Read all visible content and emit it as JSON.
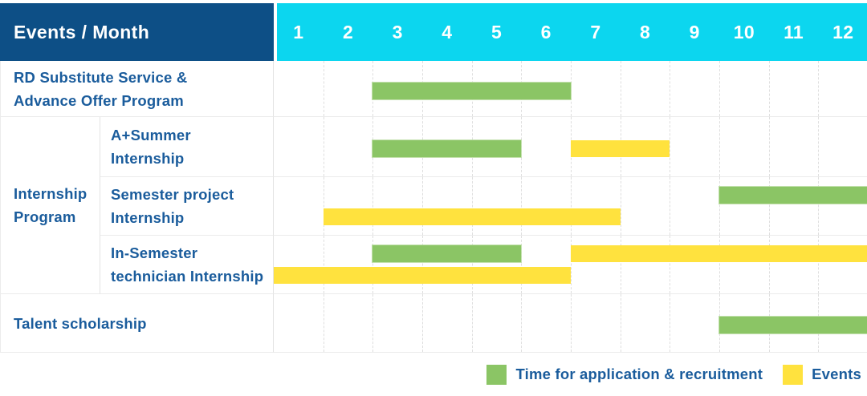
{
  "colors": {
    "navy": "#0d4f86",
    "cyan": "#0cd6ef",
    "green": "#8bc565",
    "yellow": "#ffe23e",
    "label_text": "#1a5c9c"
  },
  "header": {
    "label": "Events / Month",
    "months": [
      "1",
      "2",
      "3",
      "4",
      "5",
      "6",
      "7",
      "8",
      "9",
      "10",
      "11",
      "12"
    ]
  },
  "group": {
    "label_lines": [
      "Internship",
      "Program"
    ]
  },
  "rows": [
    {
      "name": "rd-substitute-service-advance-offer-program",
      "label_lines": [
        "RD Substitute Service &",
        "Advance Offer Program"
      ],
      "lines": [
        [
          {
            "color": "green",
            "start": 3,
            "end": 6
          }
        ]
      ]
    },
    {
      "name": "a-plus-summer-internship",
      "label_lines": [
        "A+Summer",
        "Internship"
      ],
      "lines": [
        [
          {
            "color": "green",
            "start": 3,
            "end": 5
          },
          {
            "color": "yellow",
            "start": 7,
            "end": 8
          }
        ]
      ]
    },
    {
      "name": "semester-project-internship",
      "label_lines": [
        "Semester project",
        "Internship"
      ],
      "lines": [
        [
          {
            "color": "green",
            "start": 10,
            "end": 12
          }
        ],
        [
          {
            "color": "yellow",
            "start": 2,
            "end": 7
          }
        ]
      ]
    },
    {
      "name": "in-semester-technician-internship",
      "label_lines": [
        "In-Semester",
        "technician Internship"
      ],
      "lines": [
        [
          {
            "color": "green",
            "start": 3,
            "end": 5
          },
          {
            "color": "yellow",
            "start": 7,
            "end": 12
          }
        ],
        [
          {
            "color": "yellow",
            "start": 1,
            "end": 6
          }
        ]
      ]
    },
    {
      "name": "talent-scholarship",
      "label_lines": [
        "Talent scholarship"
      ],
      "lines": [
        [
          {
            "color": "green",
            "start": 10,
            "end": 12
          }
        ]
      ]
    }
  ],
  "legend": [
    {
      "color": "green",
      "label": "Time for application & recruitment"
    },
    {
      "color": "yellow",
      "label": "Events"
    }
  ],
  "chart_data": {
    "type": "table",
    "subtype": "gantt",
    "title": "Events / Month",
    "x_axis": {
      "label": "Month",
      "ticks": [
        1,
        2,
        3,
        4,
        5,
        6,
        7,
        8,
        9,
        10,
        11,
        12
      ],
      "range": [
        1,
        12
      ]
    },
    "grid": true,
    "legend_position": "bottom-right",
    "series_legend": [
      {
        "name": "Time for application & recruitment",
        "color": "#8bc565"
      },
      {
        "name": "Events",
        "color": "#ffe23e"
      }
    ],
    "rows": [
      {
        "event": "RD Substitute Service & Advance Offer Program",
        "group": null,
        "spans": [
          {
            "series": "Time for application & recruitment",
            "start_month": 3,
            "end_month": 6
          }
        ]
      },
      {
        "event": "A+Summer Internship",
        "group": "Internship Program",
        "spans": [
          {
            "series": "Time for application & recruitment",
            "start_month": 3,
            "end_month": 5
          },
          {
            "series": "Events",
            "start_month": 7,
            "end_month": 8
          }
        ]
      },
      {
        "event": "Semester project Internship",
        "group": "Internship Program",
        "spans": [
          {
            "series": "Time for application & recruitment",
            "start_month": 10,
            "end_month": 12
          },
          {
            "series": "Events",
            "start_month": 2,
            "end_month": 7
          }
        ]
      },
      {
        "event": "In-Semester technician Internship",
        "group": "Internship Program",
        "spans": [
          {
            "series": "Time for application & recruitment",
            "start_month": 3,
            "end_month": 5
          },
          {
            "series": "Events",
            "start_month": 7,
            "end_month": 12
          },
          {
            "series": "Events",
            "start_month": 1,
            "end_month": 6
          }
        ]
      },
      {
        "event": "Talent scholarship",
        "group": null,
        "spans": [
          {
            "series": "Time for application & recruitment",
            "start_month": 10,
            "end_month": 12
          }
        ]
      }
    ]
  }
}
